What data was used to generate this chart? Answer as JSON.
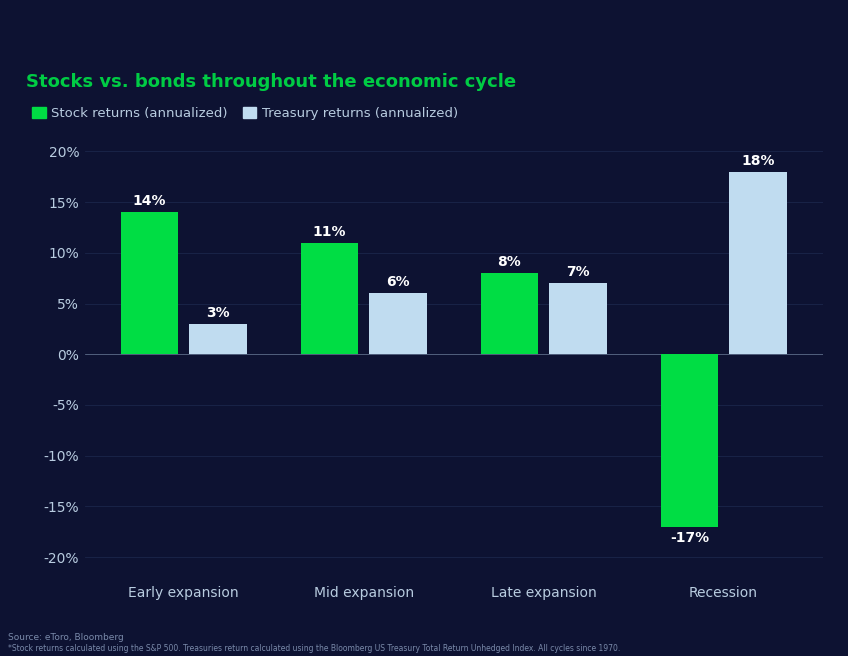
{
  "title": "Stocks vs. bonds throughout the economic cycle",
  "background_color": "#0d1232",
  "title_color": "#00cc44",
  "legend_items": [
    "Stock returns (annualized)",
    "Treasury returns (annualized)"
  ],
  "legend_colors": [
    "#00dd44",
    "#b8d8f0"
  ],
  "categories": [
    "Early expansion",
    "Mid expansion",
    "Late expansion",
    "Recession"
  ],
  "stock_values": [
    14,
    11,
    8,
    -17
  ],
  "treasury_values": [
    3,
    6,
    7,
    18
  ],
  "stock_labels": [
    "14%",
    "11%",
    "8%",
    "-17%"
  ],
  "treasury_labels": [
    "3%",
    "6%",
    "7%",
    "18%"
  ],
  "stock_color": "#00dd44",
  "treasury_color": "#c0dcf0",
  "tick_color": "#b8cce0",
  "grid_color": "#1e2a50",
  "ylim": [
    -22,
    22
  ],
  "yticks": [
    -20,
    -15,
    -10,
    -5,
    0,
    5,
    10,
    15,
    20
  ],
  "ytick_labels": [
    "-20%",
    "-15%",
    "-10%",
    "-5%",
    "0%",
    "5%",
    "10%",
    "15%",
    "20%"
  ],
  "source_text": "Source: eToro, Bloomberg",
  "footnote_text": "*Stock returns calculated using the S&P 500. Treasuries return calculated using the Bloomberg US Treasury Total Return Unhedged Index. All cycles since 1970.",
  "bar_width": 0.32,
  "label_fontsize": 10,
  "axis_fontsize": 10,
  "cat_fontsize": 10
}
